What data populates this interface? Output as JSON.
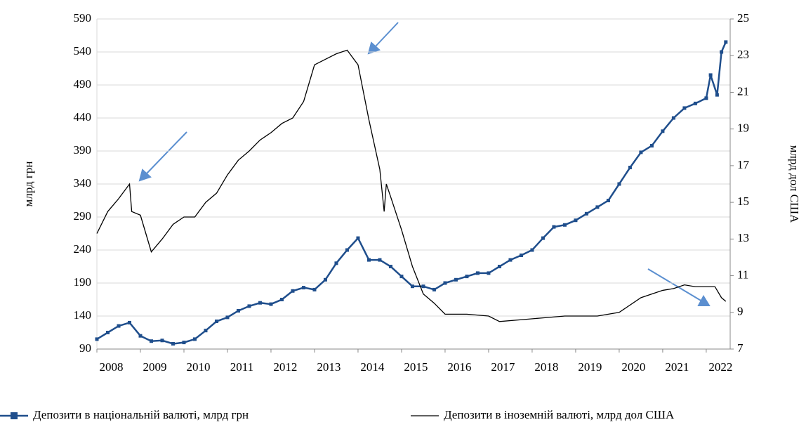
{
  "chart_data": {
    "type": "line",
    "y_label": "млрд грн",
    "y2_label": "млрд дол США",
    "xlim": [
      2008,
      2022.55
    ],
    "xticks": [
      2008,
      2009,
      2010,
      2011,
      2012,
      2013,
      2014,
      2015,
      2016,
      2017,
      2018,
      2019,
      2020,
      2021,
      2022
    ],
    "ylim": [
      90,
      590
    ],
    "yticks": [
      90,
      140,
      190,
      240,
      290,
      340,
      390,
      440,
      490,
      540,
      590
    ],
    "y2lim": [
      7,
      25
    ],
    "y2ticks": [
      7,
      9,
      11,
      13,
      15,
      17,
      19,
      21,
      23,
      25
    ],
    "grid": true,
    "series": [
      {
        "name": "Депозити в національній валюті, млрд грн",
        "color": "#1f4e8c",
        "axis": "y",
        "x": [
          2008.0,
          2008.25,
          2008.5,
          2008.75,
          2009.0,
          2009.25,
          2009.5,
          2009.75,
          2010.0,
          2010.25,
          2010.5,
          2010.75,
          2011.0,
          2011.25,
          2011.5,
          2011.75,
          2012.0,
          2012.25,
          2012.5,
          2012.75,
          2013.0,
          2013.25,
          2013.5,
          2013.75,
          2014.0,
          2014.25,
          2014.5,
          2014.75,
          2015.0,
          2015.25,
          2015.5,
          2015.75,
          2016.0,
          2016.25,
          2016.5,
          2016.75,
          2017.0,
          2017.25,
          2017.5,
          2017.75,
          2018.0,
          2018.25,
          2018.5,
          2018.75,
          2019.0,
          2019.25,
          2019.5,
          2019.75,
          2020.0,
          2020.25,
          2020.5,
          2020.75,
          2021.0,
          2021.25,
          2021.5,
          2021.75,
          2022.0,
          2022.1,
          2022.25,
          2022.35,
          2022.45
        ],
        "values": [
          105,
          115,
          125,
          130,
          110,
          102,
          103,
          98,
          100,
          105,
          118,
          132,
          138,
          148,
          155,
          160,
          158,
          165,
          178,
          183,
          180,
          195,
          220,
          240,
          258,
          225,
          225,
          215,
          200,
          185,
          185,
          180,
          190,
          195,
          200,
          205,
          205,
          215,
          225,
          232,
          240,
          258,
          275,
          278,
          285,
          295,
          305,
          315,
          340,
          365,
          388,
          398,
          420,
          440,
          455,
          462,
          470,
          505,
          475,
          540,
          555
        ]
      },
      {
        "name": "Депозити в іноземній валюті, млрд дол США",
        "color": "#000000",
        "axis": "y2",
        "x": [
          2008.0,
          2008.25,
          2008.5,
          2008.75,
          2008.8,
          2009.0,
          2009.25,
          2009.5,
          2009.75,
          2010.0,
          2010.25,
          2010.5,
          2010.75,
          2011.0,
          2011.25,
          2011.5,
          2011.75,
          2012.0,
          2012.25,
          2012.5,
          2012.75,
          2013.0,
          2013.25,
          2013.5,
          2013.75,
          2014.0,
          2014.25,
          2014.5,
          2014.6,
          2014.65,
          2014.75,
          2015.0,
          2015.25,
          2015.5,
          2015.75,
          2016.0,
          2016.5,
          2017.0,
          2017.25,
          2017.75,
          2018.25,
          2018.75,
          2019.0,
          2019.5,
          2020.0,
          2020.5,
          2021.0,
          2021.25,
          2021.5,
          2021.75,
          2022.0,
          2022.2,
          2022.35,
          2022.45
        ],
        "values": [
          13.3,
          14.5,
          15.2,
          16.0,
          14.5,
          14.3,
          12.3,
          13.0,
          13.8,
          14.2,
          14.2,
          15.0,
          15.5,
          16.5,
          17.3,
          17.8,
          18.4,
          18.8,
          19.3,
          19.6,
          20.5,
          22.5,
          22.8,
          23.1,
          23.3,
          22.5,
          19.5,
          16.8,
          14.5,
          16.0,
          15.3,
          13.5,
          11.5,
          10.0,
          9.5,
          8.9,
          8.9,
          8.8,
          8.5,
          8.6,
          8.7,
          8.8,
          8.8,
          8.8,
          9.0,
          9.8,
          10.2,
          10.3,
          10.5,
          10.4,
          10.4,
          10.4,
          9.8,
          9.6
        ]
      }
    ]
  }
}
